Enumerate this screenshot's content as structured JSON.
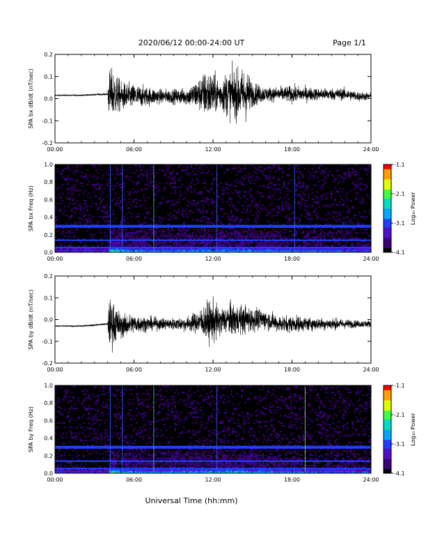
{
  "header": {
    "title": "2020/06/12  00:00-24:00 UT",
    "page": "Page 1/1"
  },
  "x_axis": {
    "label": "Universal Time (hh:mm)",
    "range_hours": [
      0,
      24
    ],
    "ticks": [
      0,
      6,
      12,
      18,
      24
    ],
    "tick_labels": [
      "00:00",
      "06:00",
      "12:00",
      "18:00",
      "24:00"
    ]
  },
  "colorbar": {
    "label": "Log₁₀ Power",
    "range": [
      -4.1,
      -1.1
    ],
    "tick_values": [
      -1.1,
      -2.1,
      -3.1,
      -4.1
    ],
    "tick_labels": [
      "-1.1",
      "-2.1",
      "-3.1",
      "-4.1"
    ],
    "colormap": [
      "#000000",
      "#3a0078",
      "#5010c8",
      "#2040ff",
      "#00a8ff",
      "#00e0c0",
      "#40ff40",
      "#e0ff00",
      "#ffa000",
      "#ff0000"
    ]
  },
  "chart_data": [
    {
      "type": "line",
      "panel": "bx-timeseries",
      "ylabel": "SPA bx dB/dt (nT/sec)",
      "ylim": [
        -0.2,
        0.2
      ],
      "y_ticks": [
        -0.2,
        -0.1,
        0.0,
        0.1,
        0.2
      ],
      "y_tick_labels": [
        "-0.2",
        "-0.1",
        "0.0",
        "0.1",
        "0.2"
      ],
      "envelope": {
        "x": [
          0,
          1,
          2,
          3,
          4,
          4.1,
          4.3,
          4.6,
          5,
          6,
          7,
          8,
          9,
          10,
          11,
          11.5,
          12,
          12.5,
          13,
          13.5,
          14,
          14.5,
          15,
          16,
          17,
          18,
          19,
          20,
          21,
          22,
          23,
          24
        ],
        "center": [
          0.015,
          0.015,
          0.015,
          0.018,
          0.02,
          0.02,
          0.02,
          0.02,
          0.01,
          0.01,
          0.01,
          0.01,
          0.01,
          0.01,
          0.02,
          0.02,
          0.02,
          0.02,
          0.02,
          0.02,
          0.02,
          0.02,
          0.02,
          0.02,
          0.02,
          0.02,
          0.02,
          0.02,
          0.02,
          0.02,
          0.01,
          0.01
        ],
        "amplitude": [
          0.005,
          0.005,
          0.006,
          0.007,
          0.008,
          0.2,
          0.2,
          0.18,
          0.12,
          0.1,
          0.08,
          0.06,
          0.06,
          0.07,
          0.14,
          0.2,
          0.18,
          0.12,
          0.18,
          0.2,
          0.2,
          0.22,
          0.1,
          0.06,
          0.06,
          0.07,
          0.06,
          0.05,
          0.05,
          0.05,
          0.04,
          0.03
        ]
      }
    },
    {
      "type": "heatmap",
      "panel": "bx-spectrogram",
      "ylabel": "SPA bx Freq (Hz)",
      "ylim": [
        0.0,
        1.0
      ],
      "y_ticks": [
        0.0,
        0.2,
        0.4,
        0.6,
        0.8,
        1.0
      ],
      "y_tick_labels": [
        "0.0",
        "0.2",
        "0.4",
        "0.6",
        "0.8",
        "1.0"
      ],
      "value_range": [
        -4.1,
        -1.1
      ],
      "background_log_power": -4.0,
      "low_freq_band": {
        "freq_max": 0.08,
        "log_power": -2.5
      },
      "horizontal_lines_hz": [
        0.3,
        0.14,
        0.06
      ],
      "vertical_lines_hours": [
        4.2,
        5.1,
        7.5,
        12.3,
        18.2
      ]
    },
    {
      "type": "line",
      "panel": "by-timeseries",
      "ylabel": "SPA by dB/dt (nT/sec)",
      "ylim": [
        -0.2,
        0.2
      ],
      "y_ticks": [
        -0.2,
        -0.1,
        0.0,
        0.1,
        0.2
      ],
      "y_tick_labels": [
        "-0.2",
        "-0.1",
        "0.0",
        "0.1",
        "0.2"
      ],
      "envelope": {
        "x": [
          0,
          1,
          2,
          3,
          4,
          4.1,
          4.3,
          4.6,
          5,
          6,
          7,
          8,
          9,
          10,
          11,
          11.5,
          12,
          12.5,
          13,
          13.5,
          14,
          14.5,
          15,
          16,
          17,
          18,
          19,
          20,
          21,
          22,
          23,
          24
        ],
        "center": [
          -0.03,
          -0.03,
          -0.03,
          -0.025,
          -0.02,
          -0.02,
          -0.02,
          -0.02,
          -0.03,
          -0.02,
          -0.02,
          -0.02,
          -0.02,
          -0.02,
          -0.01,
          -0.01,
          -0.01,
          -0.01,
          0.0,
          0.0,
          0.0,
          0.0,
          0.0,
          0.0,
          -0.02,
          -0.02,
          -0.02,
          -0.02,
          -0.02,
          -0.02,
          -0.02,
          -0.02
        ],
        "amplitude": [
          0.005,
          0.005,
          0.006,
          0.007,
          0.008,
          0.2,
          0.2,
          0.16,
          0.1,
          0.08,
          0.06,
          0.05,
          0.05,
          0.06,
          0.1,
          0.16,
          0.18,
          0.12,
          0.12,
          0.14,
          0.12,
          0.12,
          0.1,
          0.08,
          0.07,
          0.07,
          0.06,
          0.05,
          0.05,
          0.04,
          0.03,
          0.03
        ]
      }
    },
    {
      "type": "heatmap",
      "panel": "by-spectrogram",
      "ylabel": "SPA by Freq (Hz)",
      "ylim": [
        0.0,
        1.0
      ],
      "y_ticks": [
        0.0,
        0.2,
        0.4,
        0.6,
        0.8,
        1.0
      ],
      "y_tick_labels": [
        "0.0",
        "0.2",
        "0.4",
        "0.6",
        "0.8",
        "1.0"
      ],
      "value_range": [
        -4.1,
        -1.1
      ],
      "background_log_power": -4.0,
      "low_freq_band": {
        "freq_max": 0.08,
        "log_power": -2.5
      },
      "horizontal_lines_hz": [
        0.3,
        0.14,
        0.06
      ],
      "vertical_lines_hours": [
        4.2,
        5.1,
        7.5,
        12.3,
        19.0
      ]
    }
  ]
}
